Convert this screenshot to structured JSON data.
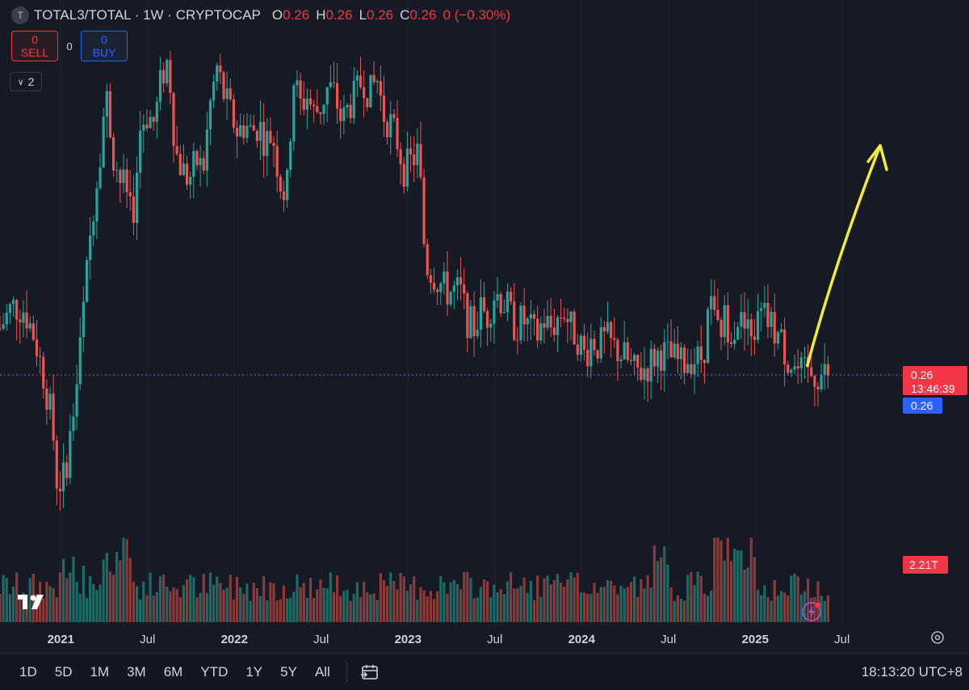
{
  "header": {
    "symbol_icon": "T",
    "title": "TOTAL3/TOTAL · 1W · CRYPTOCAP",
    "ohlc": [
      {
        "k": "O",
        "v": "0.26"
      },
      {
        "k": "H",
        "v": "0.26"
      },
      {
        "k": "L",
        "v": "0.26"
      },
      {
        "k": "C",
        "v": "0.26"
      }
    ],
    "change": "0 (−0.30%)"
  },
  "trade": {
    "sell_price": "0",
    "sell_label": "SELL",
    "spread": "0",
    "buy_price": "0",
    "buy_label": "BUY"
  },
  "indicator_toggle": "2",
  "price_badges": {
    "last_price": "0.26",
    "countdown": "13:46:39",
    "bid_price": "0.26",
    "volume": "2.21T"
  },
  "time_axis_labels": [
    {
      "t": 2021.0,
      "label": "2021",
      "bold": true
    },
    {
      "t": 2021.5,
      "label": "Jul",
      "bold": false
    },
    {
      "t": 2022.0,
      "label": "2022",
      "bold": true
    },
    {
      "t": 2022.5,
      "label": "Jul",
      "bold": false
    },
    {
      "t": 2023.0,
      "label": "2023",
      "bold": true
    },
    {
      "t": 2023.5,
      "label": "Jul",
      "bold": false
    },
    {
      "t": 2024.0,
      "label": "2024",
      "bold": true
    },
    {
      "t": 2024.5,
      "label": "Jul",
      "bold": false
    },
    {
      "t": 2025.0,
      "label": "2025",
      "bold": true
    },
    {
      "t": 2025.5,
      "label": "Jul",
      "bold": false
    }
  ],
  "toolbar": {
    "ranges": [
      "1D",
      "5D",
      "1M",
      "3M",
      "6M",
      "YTD",
      "1Y",
      "5Y",
      "All"
    ],
    "clock": "18:13:20 UTC+8",
    "calendar_icon": "calendar-icon",
    "settings_icon": "gear-icon",
    "logo": "tradingview-logo"
  },
  "colors": {
    "up": "#26a69a",
    "down": "#ef5350",
    "up_vol": "#1d6b64",
    "down_vol": "#8b3a3a",
    "arrow": "#f5ea3a",
    "price_line": "#9c4fc2",
    "price_badge": "#f23645",
    "bid_badge": "#2962ff",
    "background": "#161a25"
  },
  "chart_data": {
    "type": "candlestick",
    "title": "TOTAL3/TOTAL · 1W · CRYPTOCAP",
    "interval": "1W",
    "x_range": [
      2020.65,
      2025.85
    ],
    "ylim": [
      0.175,
      0.46
    ],
    "last_price": 0.26,
    "close_path": [
      [
        2020.65,
        0.285
      ],
      [
        2020.72,
        0.297
      ],
      [
        2020.79,
        0.295
      ],
      [
        2020.85,
        0.28
      ],
      [
        2020.9,
        0.26
      ],
      [
        2020.95,
        0.235
      ],
      [
        2020.98,
        0.2
      ],
      [
        2021.02,
        0.205
      ],
      [
        2021.06,
        0.23
      ],
      [
        2021.1,
        0.262
      ],
      [
        2021.14,
        0.305
      ],
      [
        2021.18,
        0.345
      ],
      [
        2021.22,
        0.375
      ],
      [
        2021.26,
        0.412
      ],
      [
        2021.3,
        0.38
      ],
      [
        2021.34,
        0.365
      ],
      [
        2021.38,
        0.36
      ],
      [
        2021.42,
        0.35
      ],
      [
        2021.46,
        0.395
      ],
      [
        2021.5,
        0.4
      ],
      [
        2021.54,
        0.395
      ],
      [
        2021.58,
        0.42
      ],
      [
        2021.62,
        0.43
      ],
      [
        2021.66,
        0.38
      ],
      [
        2021.7,
        0.37
      ],
      [
        2021.74,
        0.365
      ],
      [
        2021.78,
        0.375
      ],
      [
        2021.82,
        0.37
      ],
      [
        2021.86,
        0.405
      ],
      [
        2021.9,
        0.425
      ],
      [
        2021.94,
        0.41
      ],
      [
        2021.98,
        0.4
      ],
      [
        2022.02,
        0.39
      ],
      [
        2022.06,
        0.395
      ],
      [
        2022.1,
        0.39
      ],
      [
        2022.14,
        0.395
      ],
      [
        2022.18,
        0.385
      ],
      [
        2022.22,
        0.39
      ],
      [
        2022.26,
        0.365
      ],
      [
        2022.3,
        0.355
      ],
      [
        2022.34,
        0.42
      ],
      [
        2022.38,
        0.405
      ],
      [
        2022.42,
        0.41
      ],
      [
        2022.46,
        0.4
      ],
      [
        2022.5,
        0.405
      ],
      [
        2022.54,
        0.415
      ],
      [
        2022.58,
        0.41
      ],
      [
        2022.62,
        0.395
      ],
      [
        2022.66,
        0.405
      ],
      [
        2022.7,
        0.41
      ],
      [
        2022.74,
        0.42
      ],
      [
        2022.78,
        0.41
      ],
      [
        2022.82,
        0.42
      ],
      [
        2022.86,
        0.4
      ],
      [
        2022.9,
        0.395
      ],
      [
        2022.94,
        0.385
      ],
      [
        2022.98,
        0.37
      ],
      [
        2023.02,
        0.375
      ],
      [
        2023.06,
        0.38
      ],
      [
        2023.1,
        0.32
      ],
      [
        2023.14,
        0.315
      ],
      [
        2023.18,
        0.31
      ],
      [
        2023.22,
        0.305
      ],
      [
        2023.26,
        0.305
      ],
      [
        2023.3,
        0.305
      ],
      [
        2023.34,
        0.29
      ],
      [
        2023.38,
        0.285
      ],
      [
        2023.42,
        0.295
      ],
      [
        2023.46,
        0.292
      ],
      [
        2023.5,
        0.305
      ],
      [
        2023.54,
        0.3
      ],
      [
        2023.58,
        0.295
      ],
      [
        2023.62,
        0.285
      ],
      [
        2023.66,
        0.29
      ],
      [
        2023.7,
        0.285
      ],
      [
        2023.74,
        0.28
      ],
      [
        2023.78,
        0.29
      ],
      [
        2023.82,
        0.285
      ],
      [
        2023.86,
        0.29
      ],
      [
        2023.9,
        0.295
      ],
      [
        2023.94,
        0.285
      ],
      [
        2023.98,
        0.28
      ],
      [
        2024.02,
        0.27
      ],
      [
        2024.06,
        0.28
      ],
      [
        2024.1,
        0.275
      ],
      [
        2024.14,
        0.28
      ],
      [
        2024.18,
        0.275
      ],
      [
        2024.22,
        0.272
      ],
      [
        2024.26,
        0.268
      ],
      [
        2024.3,
        0.262
      ],
      [
        2024.34,
        0.262
      ],
      [
        2024.38,
        0.265
      ],
      [
        2024.42,
        0.27
      ],
      [
        2024.46,
        0.272
      ],
      [
        2024.5,
        0.27
      ],
      [
        2024.54,
        0.268
      ],
      [
        2024.58,
        0.265
      ],
      [
        2024.62,
        0.27
      ],
      [
        2024.66,
        0.268
      ],
      [
        2024.7,
        0.27
      ],
      [
        2024.74,
        0.3
      ],
      [
        2024.78,
        0.28
      ],
      [
        2024.82,
        0.29
      ],
      [
        2024.86,
        0.285
      ],
      [
        2024.9,
        0.29
      ],
      [
        2024.94,
        0.285
      ],
      [
        2024.98,
        0.28
      ],
      [
        2025.02,
        0.29
      ],
      [
        2025.06,
        0.29
      ],
      [
        2025.1,
        0.285
      ],
      [
        2025.14,
        0.28
      ],
      [
        2025.18,
        0.27
      ],
      [
        2025.22,
        0.265
      ],
      [
        2025.26,
        0.26
      ]
    ],
    "volume_note": "Volume bars in the lower pane, peak in late 2024 (~2.21T at last bar)",
    "annotation": {
      "type": "arrow",
      "color": "#f5ea3a",
      "from": [
        2025.3,
        0.265
      ],
      "to": [
        2025.72,
        0.37
      ]
    }
  }
}
